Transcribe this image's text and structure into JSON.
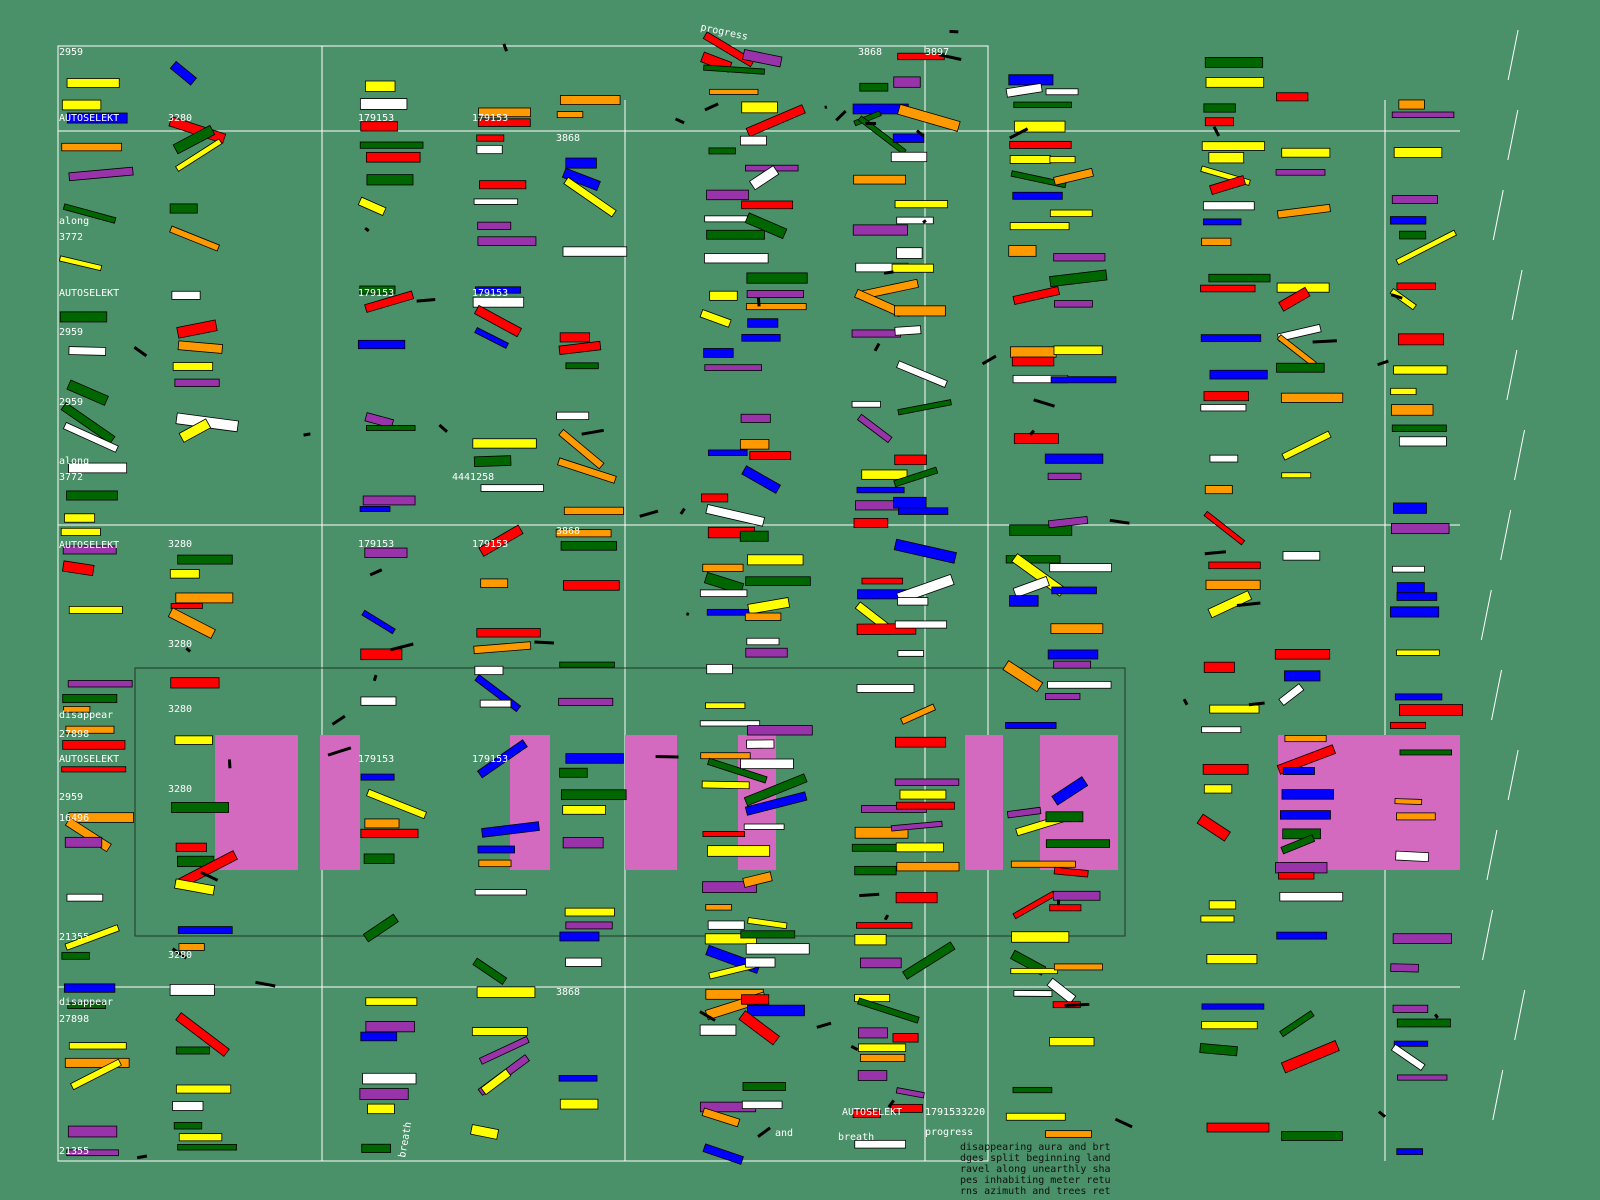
{
  "labels": {
    "autoselekt": "AUTOSELEKT",
    "n3280": "3280",
    "n179153": "179153",
    "n2959": "2959",
    "n3868": "3868",
    "n3897": "3897",
    "along": "along",
    "n3772": "3772",
    "progress": "progress",
    "disappear": "disappear",
    "n27898": "27898",
    "n16496": "16496",
    "n21355": "21355",
    "and": "and",
    "breath": "breath",
    "n1791533220": "1791533220",
    "n4441258": "4441258"
  },
  "paragraph": [
    "disappearing aura and brt",
    "dges split beginning land",
    "ravel along unearthly sha",
    "pes inhabiting meter retu",
    "rns azimuth and trees ret"
  ]
}
